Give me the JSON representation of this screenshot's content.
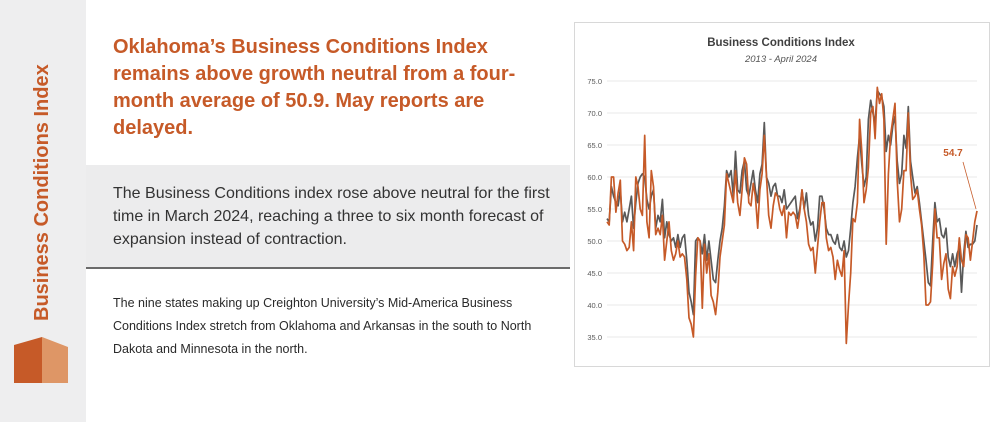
{
  "sidebar": {
    "title": "Business Conditions Index"
  },
  "headline": {
    "part1": "Oklahoma’s Business Conditions Index remains above growth neutral from a four-month average of ",
    "value": "50.9",
    "part2": ". May reports are delayed."
  },
  "callout": {
    "text": "The Business Conditions index rose above neutral for the first time in March 2024, reaching a three to six month forecast of expansion instead of contraction."
  },
  "body": {
    "text": "The nine states making up Creighton University’s Mid-America Business Conditions Index stretch from Oklahoma and Arkansas in the south to North Dakota and Minnesota in the north."
  },
  "colors": {
    "accent": "#c65a28",
    "series_dark": "#595959",
    "series_orange": "#c65a28"
  },
  "chart_data": {
    "type": "line",
    "title": "Business Conditions Index",
    "subtitle": "2013 - April 2024",
    "y_ticks": [
      "75.0",
      "70.0",
      "65.0",
      "60.0",
      "55.0",
      "50.0",
      "45.0",
      "40.0",
      "35.0"
    ],
    "ylim": [
      30,
      75
    ],
    "grid": true,
    "x_range": [
      "2013-01",
      "2024-04"
    ],
    "annotation": {
      "text": "54.7",
      "series": 1,
      "point": "last"
    },
    "series": [
      {
        "color": "#595959",
        "values": [
          53.5,
          53.0,
          58.5,
          57.0,
          56.0,
          55.5,
          58.0,
          53.0,
          54.5,
          53.0,
          55.0,
          57.0,
          52.0,
          56.0,
          59.0,
          60.0,
          60.5,
          60.0,
          56.5,
          55.0,
          57.0,
          58.0,
          52.0,
          54.0,
          53.0,
          56.5,
          50.5,
          53.0,
          51.0,
          50.0,
          50.5,
          49.0,
          51.0,
          49.0,
          50.5,
          51.0,
          47.0,
          42.0,
          40.5,
          38.5,
          50.0,
          50.5,
          50.0,
          48.0,
          51.0,
          47.0,
          50.0,
          47.0,
          44.0,
          43.5,
          47.0,
          50.0,
          52.0,
          55.5,
          61.0,
          60.0,
          61.0,
          57.0,
          64.0,
          58.0,
          57.5,
          61.0,
          62.5,
          58.0,
          57.0,
          59.0,
          61.0,
          58.0,
          56.0,
          60.5,
          62.0,
          68.5,
          60.0,
          59.0,
          57.0,
          58.5,
          59.0,
          57.0,
          57.0,
          56.0,
          58.0,
          55.0,
          55.5,
          56.0,
          56.5,
          57.0,
          53.5,
          55.0,
          58.0,
          55.0,
          57.5,
          54.0,
          52.5,
          53.0,
          50.0,
          52.0,
          57.0,
          57.0,
          55.0,
          52.0,
          51.0,
          51.0,
          50.0,
          49.5,
          51.0,
          49.0,
          48.5,
          50.0,
          47.5,
          48.5,
          52.0,
          56.0,
          58.5,
          63.0,
          66.5,
          62.0,
          58.5,
          60.0,
          69.0,
          72.0,
          70.0,
          68.5,
          73.5,
          73.0,
          72.5,
          71.0,
          64.0,
          66.5,
          65.0,
          68.0,
          69.5,
          62.5,
          59.0,
          60.5,
          66.5,
          64.5,
          71.0,
          62.5,
          60.0,
          57.5,
          58.5,
          56.0,
          53.0,
          50.0,
          47.0,
          43.5,
          43.0,
          50.0,
          56.0,
          53.0,
          53.5,
          51.0,
          50.5,
          52.0,
          47.5,
          46.0,
          48.0,
          46.0,
          48.0,
          49.0,
          42.0,
          48.0,
          51.5,
          49.0,
          49.5,
          49.5,
          50.0,
          52.5
        ]
      },
      {
        "color": "#c65a28",
        "values": [
          53.0,
          52.5,
          60.0,
          60.0,
          54.5,
          57.5,
          59.5,
          50.0,
          49.5,
          48.5,
          49.0,
          53.0,
          48.5,
          60.0,
          58.5,
          55.0,
          54.0,
          66.5,
          53.0,
          50.5,
          61.0,
          58.5,
          51.0,
          52.0,
          51.0,
          54.0,
          47.0,
          50.0,
          53.0,
          48.5,
          47.0,
          48.0,
          50.0,
          47.5,
          48.0,
          47.5,
          44.0,
          38.0,
          37.0,
          35.0,
          44.5,
          50.5,
          50.0,
          39.5,
          49.5,
          45.0,
          48.0,
          41.5,
          40.5,
          38.5,
          42.0,
          47.5,
          50.0,
          52.5,
          60.5,
          59.0,
          57.5,
          56.0,
          61.0,
          56.0,
          54.0,
          58.0,
          63.0,
          62.0,
          56.0,
          55.5,
          59.0,
          57.0,
          52.0,
          58.0,
          60.5,
          66.5,
          60.0,
          54.0,
          52.0,
          55.5,
          57.5,
          57.0,
          55.0,
          54.0,
          55.5,
          50.5,
          54.5,
          54.0,
          54.5,
          54.0,
          52.0,
          54.5,
          58.0,
          55.0,
          53.0,
          49.5,
          48.5,
          49.0,
          45.0,
          49.0,
          53.0,
          56.0,
          56.0,
          50.5,
          48.5,
          49.0,
          47.5,
          44.0,
          47.0,
          45.5,
          44.5,
          48.5,
          34.0,
          40.0,
          45.0,
          53.5,
          53.0,
          56.0,
          69.0,
          64.0,
          56.0,
          58.0,
          61.5,
          70.0,
          71.0,
          66.0,
          74.0,
          71.5,
          73.0,
          69.0,
          49.5,
          60.5,
          66.5,
          69.0,
          71.5,
          59.5,
          53.0,
          55.0,
          61.0,
          61.0,
          70.0,
          60.5,
          56.5,
          57.0,
          58.0,
          55.0,
          52.5,
          48.0,
          40.0,
          40.0,
          40.5,
          46.5,
          55.0,
          50.5,
          50.5,
          44.0,
          46.5,
          48.0,
          42.5,
          41.0,
          46.0,
          44.5,
          46.0,
          50.5,
          47.0,
          46.0,
          51.0,
          50.5,
          47.0,
          50.0,
          53.0,
          54.7
        ]
      }
    ]
  }
}
